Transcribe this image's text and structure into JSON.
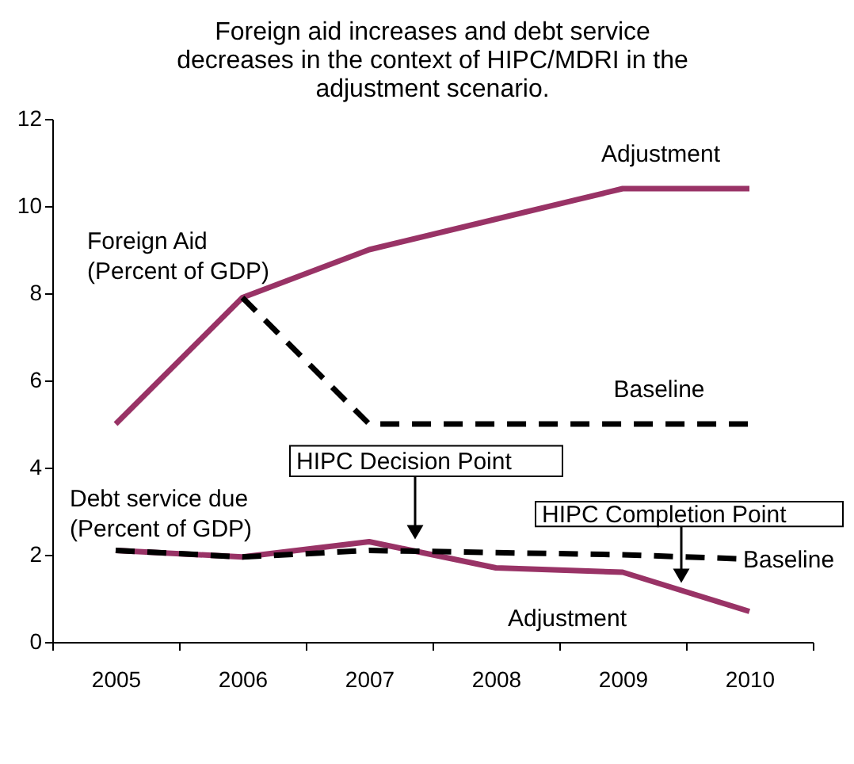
{
  "chart_data": {
    "type": "line",
    "title": "Foreign aid increases and debt service decreases in the context of HIPC/MDRI in the adjustment scenario.",
    "categories": [
      "2005",
      "2006",
      "2007",
      "2008",
      "2009",
      "2010"
    ],
    "ylim": [
      0,
      12
    ],
    "yticks": [
      0,
      2,
      4,
      6,
      8,
      10,
      12
    ],
    "grid": false,
    "series": [
      {
        "name": "Adjustment",
        "color": "#993366",
        "line_style": "solid",
        "values": [
          5.0,
          7.9,
          9.0,
          9.7,
          10.4,
          10.4
        ]
      },
      {
        "name": "Baseline",
        "color": "#000000",
        "line_style": "dashed",
        "values": [
          null,
          7.9,
          5.0,
          5.0,
          5.0,
          5.0
        ]
      },
      {
        "name": "Adjustment",
        "color": "#993366",
        "line_style": "solid",
        "values": [
          2.1,
          1.95,
          2.3,
          1.7,
          1.6,
          0.7
        ]
      },
      {
        "name": "Baseline",
        "color": "#000000",
        "line_style": "dashed",
        "values": [
          2.1,
          1.95,
          2.1,
          2.05,
          2.0,
          1.9
        ]
      }
    ],
    "annotations": [
      "Foreign Aid\n(Percent of GDP)",
      "Debt service due\n(Percent of GDP)",
      "HIPC Decision Point",
      "HIPC Completion Point"
    ]
  }
}
